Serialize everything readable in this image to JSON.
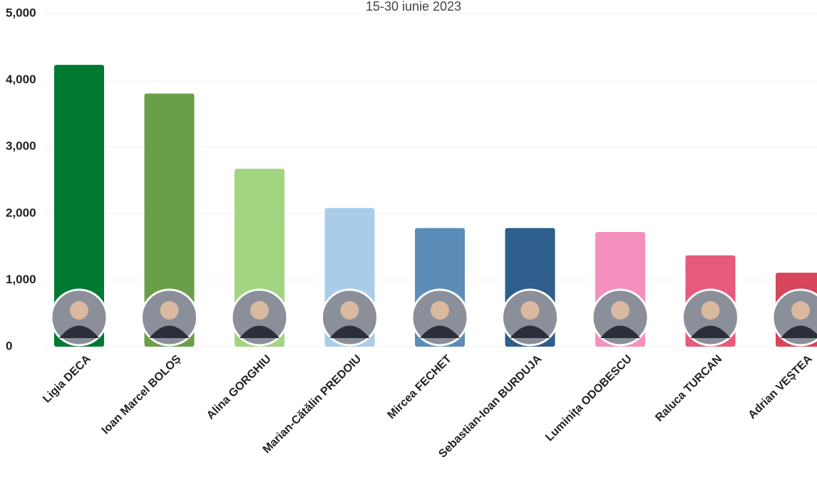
{
  "chart_data": {
    "type": "bar",
    "subtitle": "15-30 iunie 2023",
    "categories": [
      "Ligia DECA",
      "Ioan Marcel BOLOȘ",
      "Alina GORGHIU",
      "Marian-Cătălin PREDOIU",
      "Mircea FECHET",
      "Sebastian-Ioan BURDUJA",
      "Luminița ODOBESCU",
      "Raluca TURCAN",
      "Adrian VEȘTEA"
    ],
    "values": [
      4230,
      3800,
      2670,
      2080,
      1780,
      1780,
      1720,
      1370,
      1110
    ],
    "colors": [
      "#007a33",
      "#6a9f4a",
      "#a1d57f",
      "#a9cde8",
      "#5b8db8",
      "#2d5e8c",
      "#f48fbe",
      "#e85a7d",
      "#d7465a"
    ],
    "ylim": [
      0,
      5000
    ],
    "yticks": [
      0,
      {
        "value": 1000,
        "label": "1,000"
      },
      {
        "value": 2000,
        "label": "2,000"
      },
      {
        "value": 3000,
        "label": "3,000"
      },
      {
        "value": 4000,
        "label": "4,000"
      },
      {
        "value": 5000,
        "label": "5,000"
      }
    ],
    "grid": true
  }
}
